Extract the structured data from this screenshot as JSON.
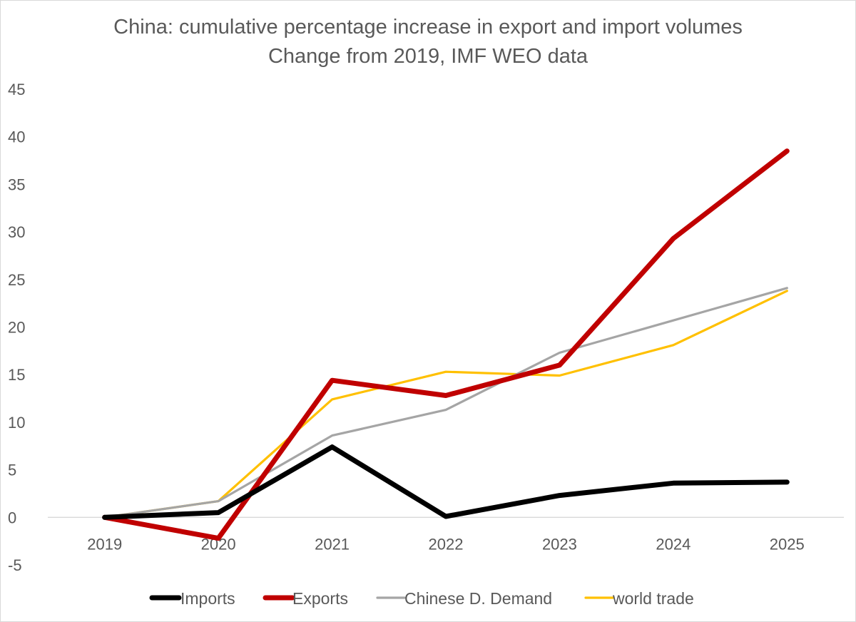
{
  "chart_data": {
    "type": "line",
    "title": "China: cumulative percentage increase in export and import volumes",
    "subtitle": "Change from 2019, IMF WEO data",
    "xlabel": "",
    "ylabel": "",
    "categories": [
      "2019",
      "2020",
      "2021",
      "2022",
      "2023",
      "2024",
      "2025"
    ],
    "ylim": [
      -5,
      45
    ],
    "yticks": [
      -5,
      0,
      5,
      10,
      15,
      20,
      25,
      30,
      35,
      40,
      45
    ],
    "grid": false,
    "legend_position": "bottom",
    "series": [
      {
        "name": "Imports",
        "color": "#000000",
        "line_weight": "thick",
        "values": [
          0,
          0.5,
          7.4,
          0.1,
          2.3,
          3.6,
          3.7
        ]
      },
      {
        "name": "Exports",
        "color": "#c00000",
        "line_weight": "thick",
        "values": [
          0,
          -2.2,
          14.4,
          12.8,
          16.0,
          29.3,
          38.5
        ]
      },
      {
        "name": "Chinese D. Demand",
        "color": "#a5a5a5",
        "line_weight": "thin",
        "values": [
          0,
          1.7,
          8.6,
          11.3,
          17.3,
          20.7,
          24.1
        ]
      },
      {
        "name": "world trade",
        "color": "#ffc000",
        "line_weight": "thin",
        "values": [
          0,
          1.7,
          12.4,
          15.3,
          14.9,
          18.1,
          23.8
        ]
      }
    ]
  }
}
